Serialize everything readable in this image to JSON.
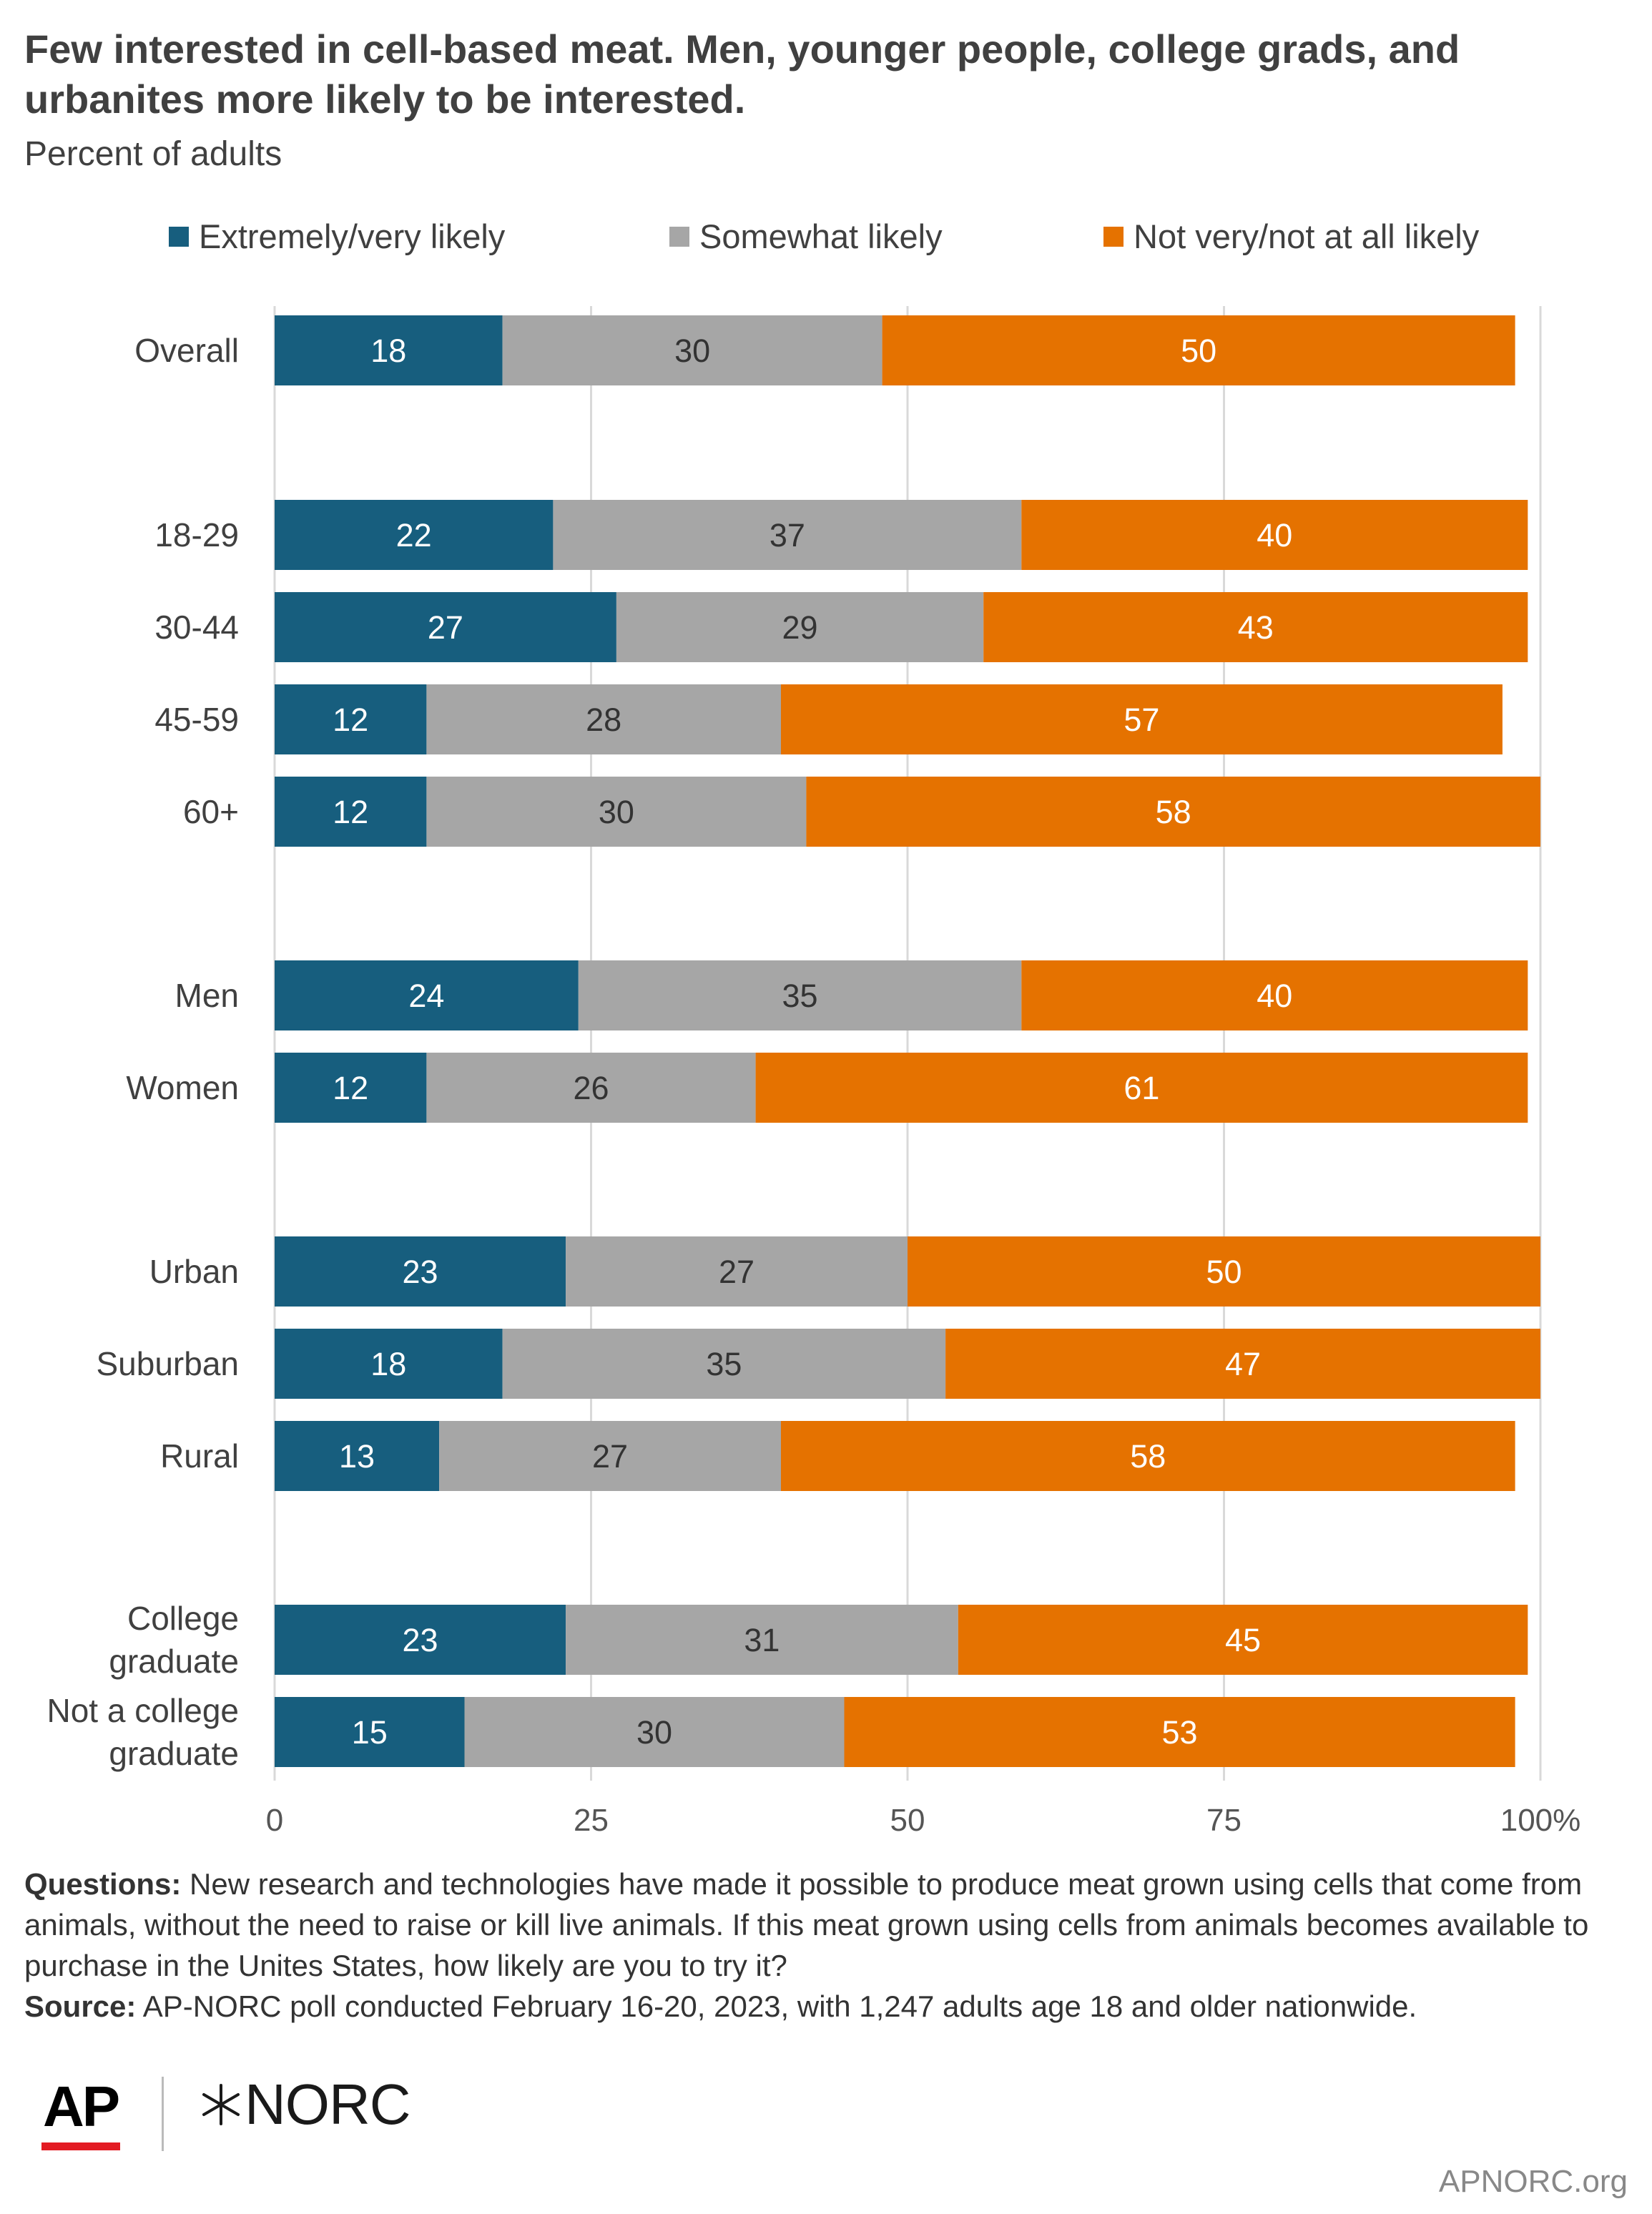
{
  "title": "Few interested in cell-based meat. Men, younger people, college grads, and urbanites more likely to be interested.",
  "subtitle": "Percent of adults",
  "legend": [
    {
      "label": "Extremely/very likely",
      "color": "#175e7e"
    },
    {
      "label": "Somewhat likely",
      "color": "#a6a6a6"
    },
    {
      "label": "Not very/not at all likely",
      "color": "#e57200"
    }
  ],
  "chart_data": {
    "type": "bar",
    "orientation": "horizontal",
    "stacked": true,
    "categories": [
      "Overall",
      "18-29",
      "30-44",
      "45-59",
      "60+",
      "Men",
      "Women",
      "Urban",
      "Suburban",
      "Rural",
      "College graduate",
      "Not a college graduate"
    ],
    "series": [
      {
        "name": "Extremely/very likely",
        "color": "#175e7e",
        "label_color": "#ffffff",
        "values": [
          18,
          22,
          27,
          12,
          12,
          24,
          12,
          23,
          18,
          13,
          23,
          15
        ]
      },
      {
        "name": "Somewhat likely",
        "color": "#a6a6a6",
        "label_color": "#333333",
        "values": [
          30,
          37,
          29,
          28,
          30,
          35,
          26,
          27,
          35,
          27,
          31,
          30
        ]
      },
      {
        "name": "Not very/not at all likely",
        "color": "#e57200",
        "label_color": "#ffffff",
        "values": [
          50,
          40,
          43,
          57,
          58,
          40,
          61,
          50,
          47,
          58,
          45,
          53
        ]
      }
    ],
    "xlim": [
      0,
      100
    ],
    "xticks": [
      "0",
      "25",
      "50",
      "75",
      "100%"
    ],
    "grid": true,
    "legend_position": "top"
  },
  "notes": {
    "questions_label": "Questions:",
    "questions_text": "New research and technologies have made it possible to produce meat grown using cells that come from animals, without the need to raise or kill live animals. If this meat grown using cells from animals becomes available to purchase in the Unites States, how likely are you to try it?",
    "source_label": "Source:",
    "source_text": "AP-NORC poll conducted February 16-20, 2023, with 1,247 adults age 18 and older nationwide."
  },
  "footer": {
    "logo_ap": "AP",
    "logo_norc": "NORC",
    "site": "APNORC.org"
  }
}
